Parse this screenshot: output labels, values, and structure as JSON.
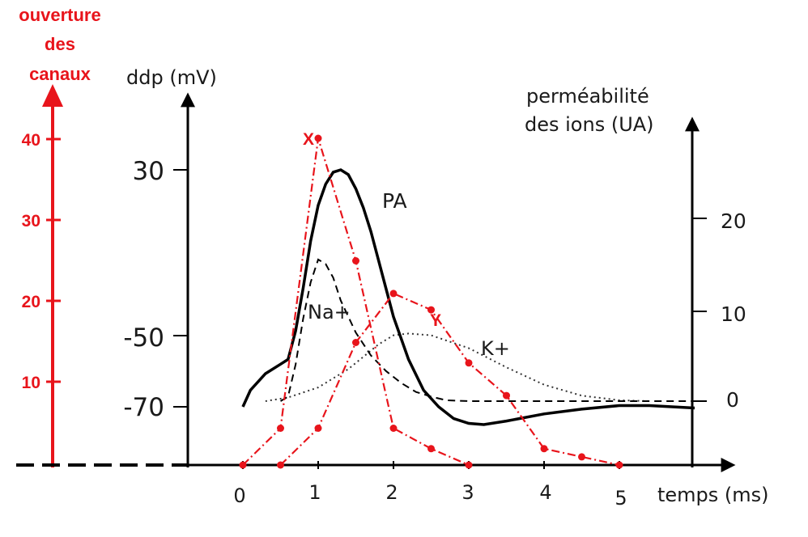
{
  "chart_data": {
    "type": "line",
    "colors": {
      "red": "#e8141b",
      "black": "#000000"
    },
    "red_axis": {
      "label_lines": [
        "ouverture",
        "des",
        "canaux"
      ],
      "ticks": [
        "40",
        "30",
        "20",
        "10"
      ],
      "tick_values": [
        40,
        30,
        20,
        10
      ]
    },
    "left_axis": {
      "label": "ddp (mV)",
      "ticks": [
        "30",
        "-50",
        "-70"
      ],
      "tick_values": [
        30,
        -50,
        -70
      ]
    },
    "right_axis": {
      "label_lines": [
        "perméabilité",
        "des ions (UA)"
      ],
      "ticks": [
        "20",
        "10",
        "0"
      ],
      "tick_values": [
        20,
        10,
        0
      ]
    },
    "x_axis": {
      "label": "temps (ms)",
      "ticks": [
        "0",
        "1",
        "2",
        "3",
        "4",
        "5"
      ],
      "tick_values": [
        0,
        1,
        2,
        3,
        4,
        5
      ]
    },
    "series": [
      {
        "name": "PA",
        "style": "solid",
        "axis": "left",
        "x": [
          0,
          0.1,
          0.3,
          0.5,
          0.6,
          0.7,
          0.8,
          0.9,
          1.0,
          1.1,
          1.2,
          1.3,
          1.4,
          1.5,
          1.6,
          1.7,
          1.8,
          1.9,
          2.0,
          2.2,
          2.4,
          2.6,
          2.8,
          3.0,
          3.2,
          3.5,
          4.0,
          4.5,
          5.0,
          5.4,
          6.0
        ],
        "y": [
          -70,
          -63,
          -56,
          -52,
          -50,
          -38,
          -20,
          0,
          15,
          24,
          29,
          30,
          28,
          22,
          14,
          4,
          -8,
          -20,
          -32,
          -50,
          -63,
          -70,
          -75,
          -77,
          -77.5,
          -76,
          -73,
          -71,
          -69.5,
          -69.5,
          -70.5
        ]
      },
      {
        "name": "Na+",
        "style": "dashed",
        "axis": "right",
        "x": [
          0.5,
          0.6,
          0.7,
          0.8,
          0.9,
          1.0,
          1.1,
          1.2,
          1.3,
          1.5,
          1.7,
          1.9,
          2.1,
          2.3,
          2.5,
          2.7,
          3.0,
          4.0,
          6.0
        ],
        "y": [
          0,
          0.5,
          4,
          9,
          13,
          15.5,
          15,
          13.5,
          11,
          7.5,
          5,
          3.3,
          2,
          1,
          0.5,
          0.1,
          0,
          0,
          0
        ]
      },
      {
        "name": "K+",
        "style": "dotted",
        "axis": "right",
        "x": [
          0.3,
          0.6,
          1.0,
          1.4,
          1.8,
          2.0,
          2.2,
          2.5,
          3.0,
          3.5,
          4.0,
          4.5,
          5.0,
          5.4
        ],
        "y": [
          0,
          0.4,
          1.5,
          3.5,
          6.2,
          7.2,
          7.4,
          7.2,
          5.8,
          3.7,
          1.8,
          0.6,
          0.1,
          0
        ]
      },
      {
        "name": "X",
        "style": "dashdot",
        "axis": "red",
        "x": [
          0,
          0.5,
          1.0,
          1.5,
          2.0,
          2.5,
          3.0
        ],
        "y": [
          0,
          4.5,
          40,
          25,
          4.5,
          2,
          0
        ]
      },
      {
        "name": "Y",
        "style": "dashdot",
        "axis": "red",
        "x": [
          0.5,
          1.0,
          1.5,
          2.0,
          2.5,
          3.0,
          3.5,
          4.0,
          4.5,
          5.0
        ],
        "y": [
          0,
          4.5,
          15,
          21,
          19,
          12.5,
          8.5,
          2,
          1,
          0
        ]
      }
    ]
  }
}
